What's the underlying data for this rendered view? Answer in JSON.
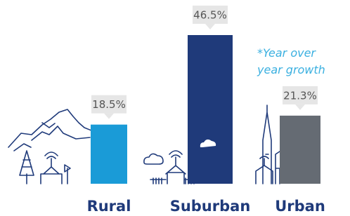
{
  "chart_data": {
    "type": "bar",
    "categories": [
      "Rural",
      "Suburban",
      "Urban"
    ],
    "series": [
      {
        "values": [
          18.5,
          46.5,
          21.3
        ],
        "value_labels": [
          "18.5%",
          "46.5%",
          "21.3%"
        ],
        "colors": [
          "#1a9bd7",
          "#1f3a7a",
          "#656b73"
        ]
      }
    ],
    "annotation": "*Year over year growth"
  }
}
